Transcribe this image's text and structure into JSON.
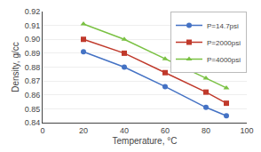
{
  "chart_data": {
    "type": "line",
    "xlabel": "Temperature, °C",
    "ylabel": "Density, g/cc",
    "x": [
      20,
      40,
      60,
      80,
      90
    ],
    "series": [
      {
        "name": "P=14.7psi",
        "color": "#4472C4",
        "marker": "circle",
        "values": [
          0.891,
          0.88,
          0.866,
          0.851,
          0.845
        ]
      },
      {
        "name": "P=2000psi",
        "color": "#C0392B",
        "marker": "square",
        "values": [
          0.9,
          0.89,
          0.876,
          0.862,
          0.854
        ]
      },
      {
        "name": "P=4000psi",
        "color": "#7AC143",
        "marker": "triangle",
        "values": [
          0.911,
          0.9,
          0.886,
          0.872,
          0.865
        ]
      }
    ],
    "xlim": [
      0,
      100
    ],
    "xticks": [
      0,
      20,
      40,
      60,
      80,
      100
    ],
    "ylim": [
      0.84,
      0.92
    ],
    "yticks": [
      0.84,
      0.85,
      0.86,
      0.87,
      0.88,
      0.89,
      {
        "value": 0.9,
        "label": "0.90"
      },
      0.91,
      0.92
    ],
    "grid": "y",
    "legend": "upper right"
  }
}
